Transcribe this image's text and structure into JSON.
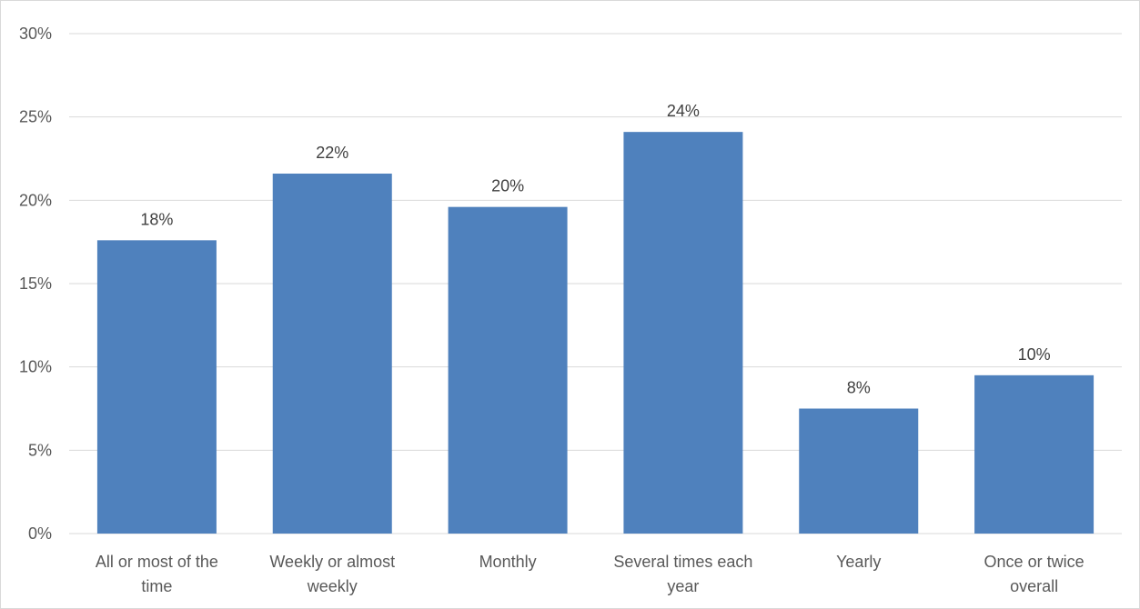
{
  "chart_data": {
    "type": "bar",
    "categories": [
      [
        "All or most of the",
        "time"
      ],
      [
        "Weekly or almost",
        "weekly"
      ],
      [
        "Monthly"
      ],
      [
        "Several times each",
        "year"
      ],
      [
        "Yearly"
      ],
      [
        "Once or twice",
        "overall"
      ]
    ],
    "values": [
      17.6,
      21.6,
      19.6,
      24.1,
      7.5,
      9.5
    ],
    "data_labels": [
      "18%",
      "22%",
      "20%",
      "24%",
      "8%",
      "10%"
    ],
    "ylim": [
      0,
      30
    ],
    "y_ticks": [
      "0%",
      "5%",
      "10%",
      "15%",
      "20%",
      "25%",
      "30%"
    ],
    "y_tick_values": [
      0,
      5,
      10,
      15,
      20,
      25,
      30
    ],
    "grid": true,
    "legend": "none",
    "title": "",
    "xlabel": "",
    "ylabel": "",
    "colors": {
      "bar": "#4f81bd",
      "grid": "#d9d9d9",
      "tick_text": "#595959",
      "label_text": "#404040"
    }
  }
}
